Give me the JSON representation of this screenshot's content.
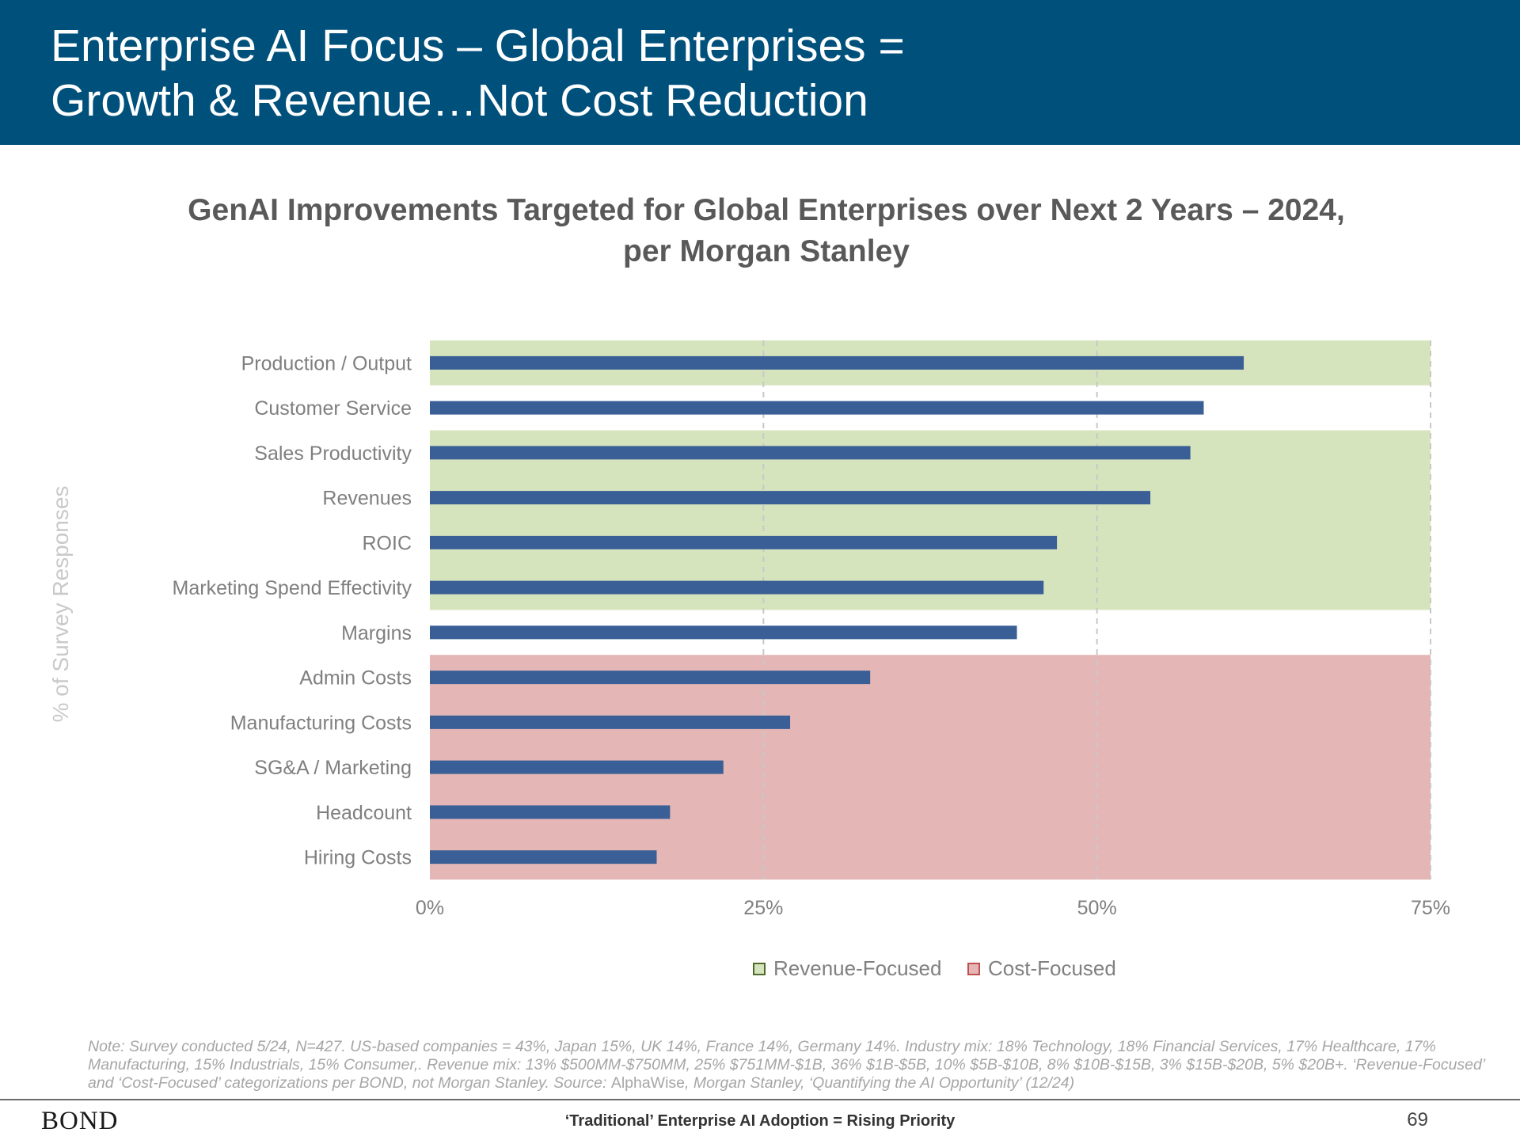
{
  "slide": {
    "title_lines": [
      "Enterprise AI Focus – Global Enterprises =",
      "Growth & Revenue…Not Cost Reduction"
    ]
  },
  "chart_data": {
    "type": "bar",
    "orientation": "horizontal",
    "title_lines": [
      "GenAI Improvements Targeted for Global Enterprises over Next 2 Years – 2024,",
      "per Morgan Stanley"
    ],
    "ylabel": "% of Survey Responses",
    "xlabel": "",
    "xlim": [
      0,
      75
    ],
    "x_ticks": [
      "0%",
      "25%",
      "50%",
      "75%"
    ],
    "grid": "vertical dashed",
    "categories": [
      "Production / Output",
      "Customer Service",
      "Sales Productivity",
      "Revenues",
      "ROIC",
      "Marketing Spend Effectivity",
      "Margins",
      "Admin Costs",
      "Manufacturing Costs",
      "SG&A / Marketing",
      "Headcount",
      "Hiring Costs"
    ],
    "values": [
      61,
      58,
      57,
      54,
      47,
      46,
      44,
      33,
      27,
      22,
      18,
      17
    ],
    "bar_color": "#3a5f96",
    "category_groups": [
      "revenue",
      "none",
      "revenue",
      "revenue",
      "revenue",
      "revenue",
      "none",
      "cost",
      "cost",
      "cost",
      "cost",
      "cost"
    ],
    "legend": [
      {
        "key": "revenue",
        "label": "Revenue-Focused",
        "fill": "#d6e4bd",
        "stroke": "#4e6a2c"
      },
      {
        "key": "cost",
        "label": "Cost-Focused",
        "fill": "#e4b6b6",
        "stroke": "#c0504d"
      }
    ],
    "legend_position": "bottom-center"
  },
  "note": {
    "text_before": "Note: Survey conducted 5/24, N=427. US-based companies = 43%, Japan 15%, UK 14%, France 14%, Germany 14%. Industry mix: 18% Technology, 18% Financial Services, 17% Healthcare, 17% Manufacturing, 15% Industrials, 15% Consumer,. Revenue mix: 13% $500MM-$750MM, 25% $751MM-$1B, 36% $1B-$5B, 10% $5B-$10B, 8% $10B-$15B, 3% $15B-$20B, 5% $20B+. ‘Revenue-Focused’ and ‘Cost-Focused’ categorizations per BOND, not Morgan Stanley. Source: ",
    "source_name": "AlphaWise",
    "text_after": ", Morgan Stanley, ‘Quantifying the AI Opportunity’ (12/24)"
  },
  "footer": {
    "logo": "BOND",
    "caption": "‘Traditional’ Enterprise AI Adoption = Rising Priority",
    "page_number": "69"
  }
}
